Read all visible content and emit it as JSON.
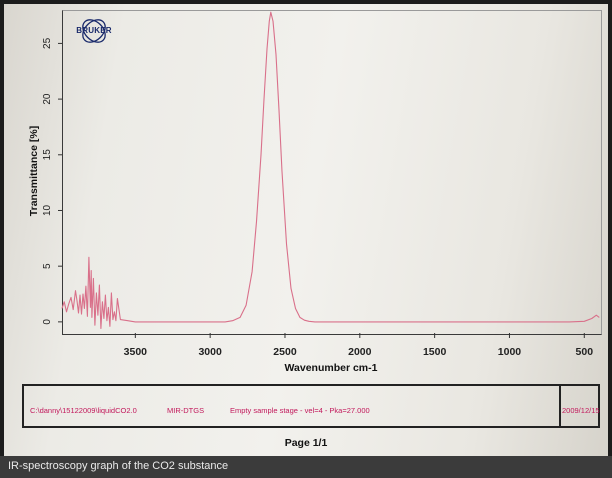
{
  "caption": "IR-spectroscopy graph of the CO2 substance",
  "logo": {
    "text": "BRUKER"
  },
  "footer": {
    "path": "C:\\danny\\15122009\\liquidCO2.0",
    "detector": "MIR-DTGS",
    "info": "Empty sample stage - vel=4 - Pka=27.000",
    "date": "2009/12/15",
    "page": "Page 1/1"
  },
  "colors": {
    "trace": "#d9708a",
    "footer_text": "#c2185b"
  },
  "chart_data": {
    "type": "line",
    "xlabel": "Wavenumber cm-1",
    "ylabel": "Transmittance [%]",
    "xlim": [
      3990,
      395
    ],
    "ylim": [
      -1,
      28
    ],
    "xticks": [
      "3500",
      "3000",
      "2500",
      "2000",
      "1500",
      "1000",
      "500"
    ],
    "yticks": [
      "0",
      "5",
      "10",
      "15",
      "20",
      "25"
    ],
    "series": [
      {
        "x": [
          3990,
          3975,
          3960,
          3945,
          3930,
          3915,
          3900,
          3890,
          3880,
          3870,
          3860,
          3850,
          3840,
          3830,
          3820,
          3810,
          3800,
          3795,
          3790,
          3780,
          3770,
          3760,
          3750,
          3740,
          3730,
          3720,
          3710,
          3700,
          3690,
          3680,
          3670,
          3660,
          3650,
          3640,
          3630,
          3620,
          3600,
          3550,
          3500,
          3400,
          3200,
          3000,
          2900,
          2850,
          2800,
          2760,
          2720,
          2690,
          2660,
          2640,
          2620,
          2605,
          2595,
          2580,
          2560,
          2540,
          2520,
          2490,
          2460,
          2430,
          2400,
          2370,
          2340,
          2300,
          2200,
          2000,
          1500,
          1000,
          800,
          600,
          500,
          450,
          420,
          400
        ],
        "y": [
          1.2,
          1.8,
          0.9,
          1.6,
          2.2,
          1.1,
          2.8,
          1.9,
          0.8,
          2.4,
          0.7,
          2.5,
          1.2,
          3.2,
          0.5,
          5.8,
          1.3,
          4.6,
          0.4,
          3.9,
          -0.3,
          2.6,
          0.6,
          3.3,
          -0.6,
          1.8,
          0.3,
          2.4,
          0.1,
          1.3,
          -0.4,
          2.6,
          0.2,
          0.9,
          0.1,
          2.1,
          0.2,
          0.1,
          0.0,
          0.0,
          0.0,
          0.0,
          0.0,
          0.1,
          0.4,
          1.5,
          4.5,
          9.0,
          15.0,
          20.0,
          24.5,
          27.0,
          27.8,
          27.0,
          24.0,
          19.0,
          13.5,
          7.0,
          3.0,
          1.2,
          0.4,
          0.15,
          0.05,
          0.0,
          0.0,
          0.0,
          0.0,
          0.0,
          0.0,
          0.0,
          0.05,
          0.3,
          0.6,
          0.4
        ]
      }
    ]
  }
}
